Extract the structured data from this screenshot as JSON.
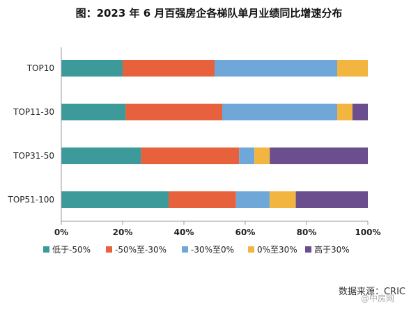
{
  "title": "图：2023 年 6 月百强房企各梯队单月业绩同比增速分布",
  "source": "数据来源：CRIC",
  "watermark": "@中房网",
  "chart_data": {
    "type": "bar",
    "orientation": "horizontal",
    "stacked": true,
    "normalized": true,
    "categories": [
      "TOP10",
      "TOP11-30",
      "TOP31-50",
      "TOP51-100"
    ],
    "series": [
      {
        "name": "低于-50%",
        "color": "#3c9a9a",
        "values": [
          20,
          21,
          26,
          35
        ]
      },
      {
        "name": "-50%至-30%",
        "color": "#e8613d",
        "values": [
          30,
          31.5,
          32,
          22
        ]
      },
      {
        "name": "-30%至0%",
        "color": "#6fa7d8",
        "values": [
          40,
          37.5,
          5,
          11
        ]
      },
      {
        "name": "0%至30%",
        "color": "#f2b640",
        "values": [
          10,
          5,
          5,
          8.5
        ]
      },
      {
        "name": "高于30%",
        "color": "#6a4e8d",
        "values": [
          0,
          5,
          32,
          23.5
        ]
      }
    ],
    "xlim": [
      0,
      100
    ],
    "xticks": [
      "0%",
      "20%",
      "40%",
      "60%",
      "80%",
      "100%"
    ],
    "grid": false,
    "legend_position": "bottom"
  }
}
